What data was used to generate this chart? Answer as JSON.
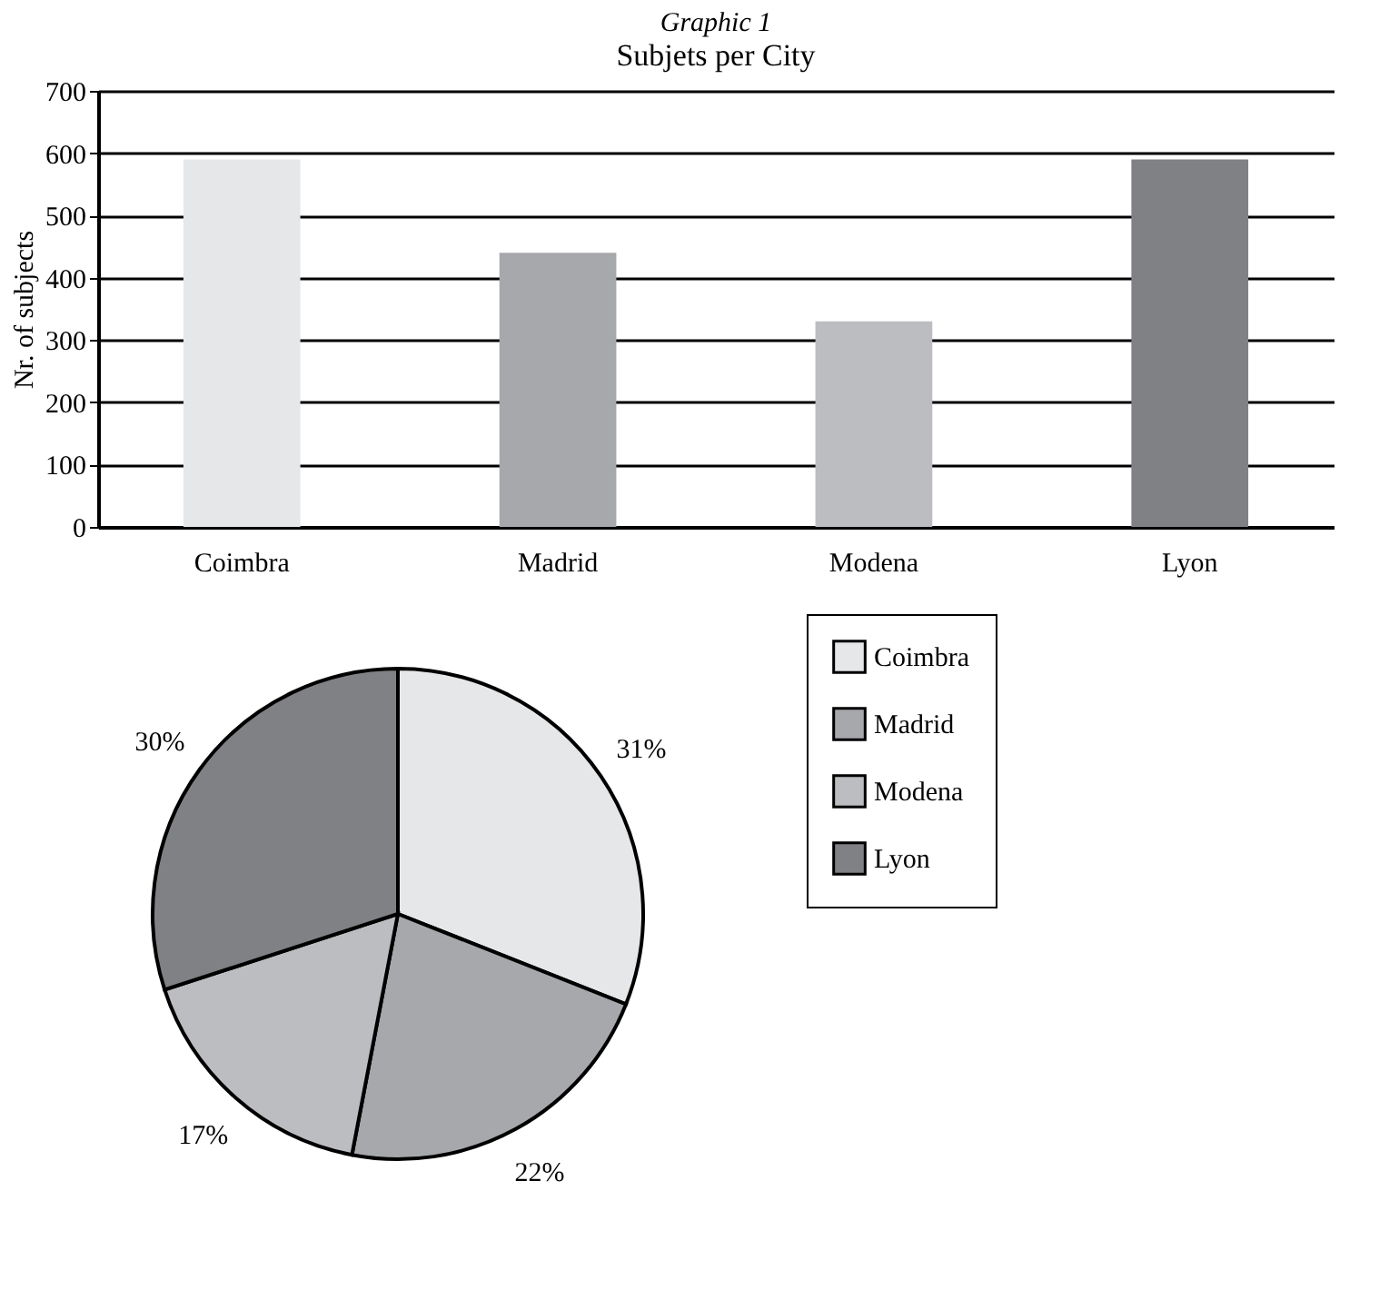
{
  "chart_data": [
    {
      "type": "bar",
      "title": "Graphic 1",
      "subtitle": "Subjets per City",
      "ylabel": "Nr. of subjects",
      "categories": [
        "Coimbra",
        "Madrid",
        "Modena",
        "Lyon"
      ],
      "values": [
        590,
        440,
        330,
        590
      ],
      "colors": [
        "#e6e7e8",
        "#a7a8ab",
        "#bcbdc0",
        "#808184"
      ],
      "ylim": [
        0,
        700
      ],
      "yticks": [
        0,
        100,
        200,
        300,
        400,
        500,
        600,
        700
      ],
      "grid": "y",
      "legend": false
    },
    {
      "type": "pie",
      "categories": [
        "Coimbra",
        "Madrid",
        "Modena",
        "Lyon"
      ],
      "values": [
        31,
        22,
        17,
        30
      ],
      "colors": [
        "#e6e7e8",
        "#a7a8ab",
        "#bcbdc0",
        "#808184"
      ],
      "value_labels": [
        "31%",
        "22%",
        "17%",
        "30%"
      ],
      "legend": "right"
    }
  ]
}
